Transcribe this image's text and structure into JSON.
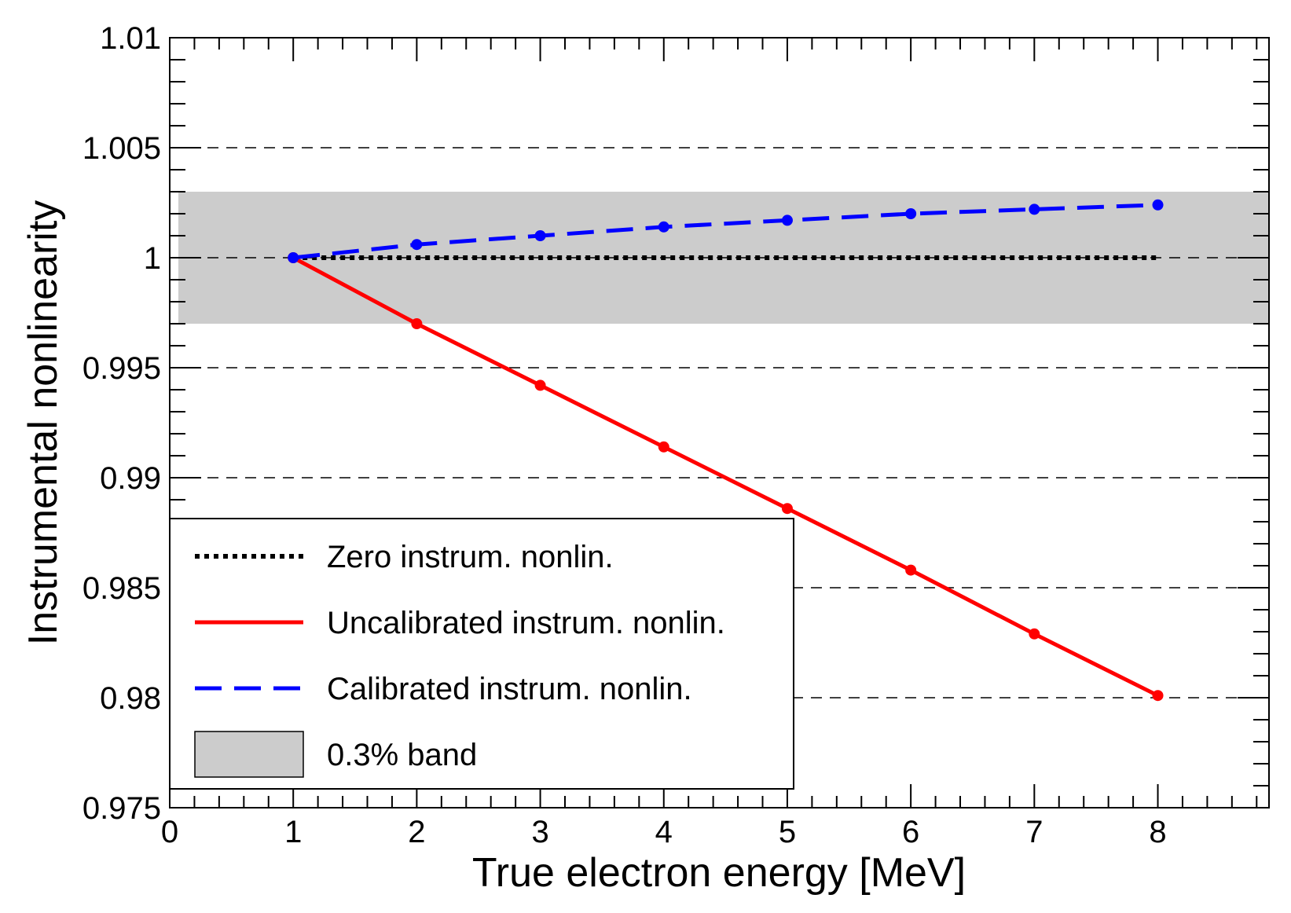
{
  "chart_data": {
    "type": "line",
    "title": "",
    "xlabel": "True electron energy [MeV]",
    "ylabel": "Instrumental nonlinearity",
    "xlim": [
      0,
      8.9
    ],
    "ylim": [
      0.975,
      1.01
    ],
    "x_ticks": [
      0,
      1,
      2,
      3,
      4,
      5,
      6,
      7,
      8
    ],
    "x_tick_labels": [
      "0",
      "1",
      "2",
      "3",
      "4",
      "5",
      "6",
      "7",
      "8"
    ],
    "y_ticks": [
      0.975,
      0.98,
      0.985,
      0.99,
      0.995,
      1.0,
      1.005,
      1.01
    ],
    "y_tick_labels": [
      "0.975",
      "0.98",
      "0.985",
      "0.99",
      "0.995",
      "1",
      "1.005",
      "1.01"
    ],
    "grid": "horizontal dashed",
    "band": {
      "name": "0.3% band",
      "xmin": 0.07,
      "xmax": 8.9,
      "ymin": 0.997,
      "ymax": 1.003,
      "color": "#cccccc"
    },
    "series": [
      {
        "name": "Zero instrum. nonlin.",
        "style": "dotted",
        "color": "#000000",
        "markers": false,
        "x": [
          1,
          8
        ],
        "y": [
          1.0,
          1.0
        ]
      },
      {
        "name": "Uncalibrated instrum. nonlin.",
        "style": "solid",
        "color": "#ff0000",
        "markers": true,
        "x": [
          1,
          2,
          3,
          4,
          5,
          6,
          7,
          8
        ],
        "y": [
          1.0,
          0.997,
          0.9942,
          0.9914,
          0.9886,
          0.9858,
          0.9829,
          0.9801
        ]
      },
      {
        "name": "Calibrated instrum. nonlin.",
        "style": "dashed",
        "color": "#0000ff",
        "markers": true,
        "x": [
          1,
          2,
          3,
          4,
          5,
          6,
          7,
          8
        ],
        "y": [
          1.0,
          1.0006,
          1.001,
          1.0014,
          1.0017,
          1.002,
          1.0022,
          1.0024
        ]
      }
    ],
    "legend": {
      "position": "bottom-left",
      "entries": [
        "Zero instrum. nonlin.",
        "Uncalibrated instrum. nonlin.",
        "Calibrated instrum. nonlin.",
        "0.3% band"
      ]
    }
  }
}
